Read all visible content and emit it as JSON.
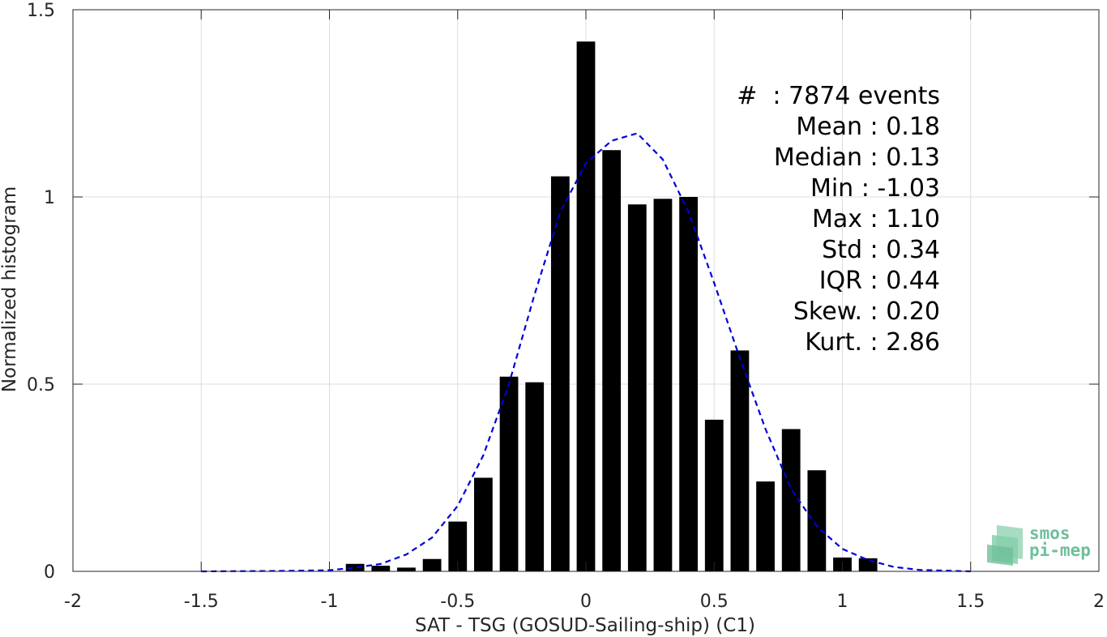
{
  "chart_data": {
    "type": "bar",
    "xlabel": "SAT - TSG (GOSUD-Sailing-ship) (C1)",
    "ylabel": "Normalized histogram",
    "xlim": [
      -2,
      2
    ],
    "ylim": [
      0,
      1.5
    ],
    "xticks": [
      -2,
      -1.5,
      -1,
      -0.5,
      0,
      0.5,
      1,
      1.5,
      2
    ],
    "xtick_labels": [
      "-2",
      "-1.5",
      "-1",
      "-0.5",
      "0",
      "0.5",
      "1",
      "1.5",
      "2"
    ],
    "yticks": [
      0,
      0.5,
      1,
      1.5
    ],
    "ytick_labels": [
      "0",
      "0.5",
      "1",
      "1.5"
    ],
    "grid": true,
    "bar_color": "#000000",
    "bin_width": 0.1,
    "bins": [
      {
        "x": -0.9,
        "y": 0.02
      },
      {
        "x": -0.8,
        "y": 0.015
      },
      {
        "x": -0.7,
        "y": 0.01
      },
      {
        "x": -0.6,
        "y": 0.033
      },
      {
        "x": -0.5,
        "y": 0.133
      },
      {
        "x": -0.4,
        "y": 0.25
      },
      {
        "x": -0.3,
        "y": 0.52
      },
      {
        "x": -0.2,
        "y": 0.505
      },
      {
        "x": -0.1,
        "y": 1.055
      },
      {
        "x": 0.0,
        "y": 1.415
      },
      {
        "x": 0.1,
        "y": 1.125
      },
      {
        "x": 0.2,
        "y": 0.98
      },
      {
        "x": 0.3,
        "y": 0.995
      },
      {
        "x": 0.4,
        "y": 1.0
      },
      {
        "x": 0.5,
        "y": 0.405
      },
      {
        "x": 0.6,
        "y": 0.59
      },
      {
        "x": 0.7,
        "y": 0.24
      },
      {
        "x": 0.8,
        "y": 0.38
      },
      {
        "x": 0.9,
        "y": 0.27
      },
      {
        "x": 1.0,
        "y": 0.037
      },
      {
        "x": 1.1,
        "y": 0.035
      }
    ],
    "fit_curve": {
      "color": "#0000dd",
      "style": "dashed",
      "points": [
        [
          -1.5,
          0.0
        ],
        [
          -1.2,
          0.001
        ],
        [
          -1.0,
          0.003
        ],
        [
          -0.9,
          0.01
        ],
        [
          -0.8,
          0.02
        ],
        [
          -0.7,
          0.045
        ],
        [
          -0.6,
          0.09
        ],
        [
          -0.5,
          0.175
        ],
        [
          -0.4,
          0.31
        ],
        [
          -0.3,
          0.5
        ],
        [
          -0.2,
          0.74
        ],
        [
          -0.1,
          0.96
        ],
        [
          0.0,
          1.09
        ],
        [
          0.1,
          1.15
        ],
        [
          0.2,
          1.17
        ],
        [
          0.3,
          1.1
        ],
        [
          0.4,
          0.96
        ],
        [
          0.5,
          0.77
        ],
        [
          0.6,
          0.57
        ],
        [
          0.7,
          0.38
        ],
        [
          0.8,
          0.22
        ],
        [
          0.9,
          0.12
        ],
        [
          1.0,
          0.06
        ],
        [
          1.1,
          0.03
        ],
        [
          1.2,
          0.012
        ],
        [
          1.3,
          0.004
        ],
        [
          1.5,
          0.0
        ]
      ]
    },
    "annotation_lines": [
      "#  : 7874 events",
      "Mean : 0.18",
      "Median : 0.13",
      "Min : -1.03",
      "Max : 1.10",
      "Std : 0.34",
      "IQR : 0.44",
      "Skew. : 0.20",
      "Kurt. : 2.86"
    ]
  },
  "logo": {
    "line1": "smos",
    "line2": "pi-mep",
    "color": "#6fbf9a"
  }
}
